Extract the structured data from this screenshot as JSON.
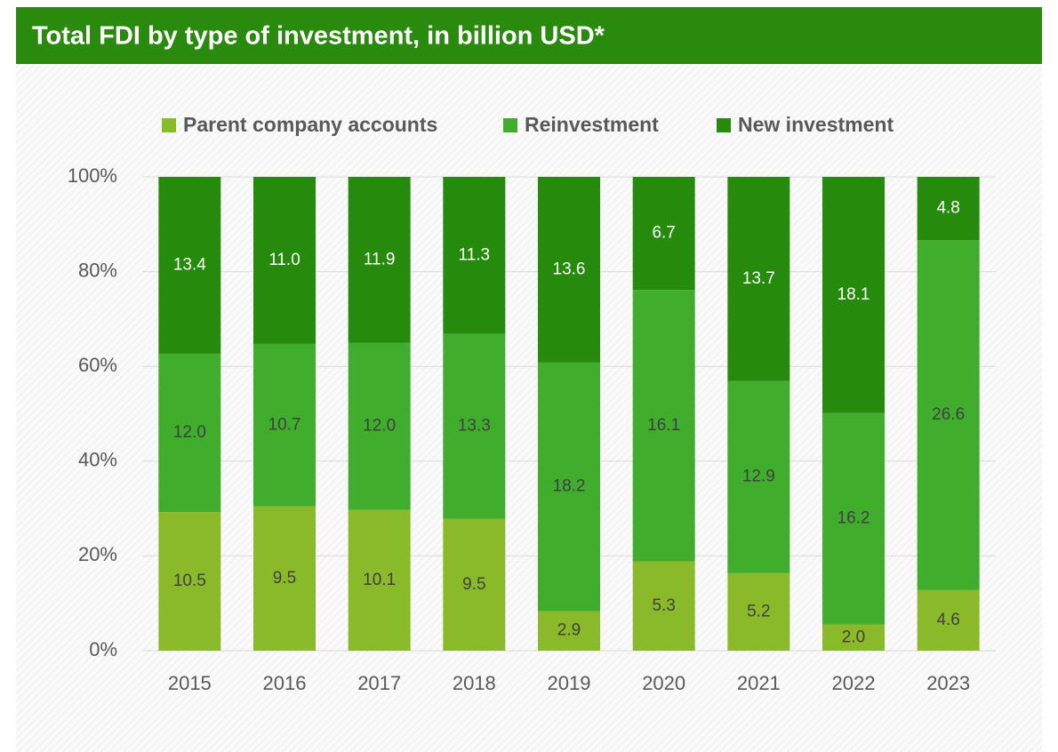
{
  "chart_data": {
    "type": "bar",
    "stacking": "percent",
    "title": "Total FDI by type of investment, in billion USD*",
    "categories": [
      "2015",
      "2016",
      "2017",
      "2018",
      "2019",
      "2020",
      "2021",
      "2022",
      "2023"
    ],
    "series": [
      {
        "name": "Parent company accounts",
        "color": "#8aba2a",
        "values": [
          10.5,
          9.5,
          10.1,
          9.5,
          2.9,
          5.3,
          5.2,
          2.0,
          4.6
        ],
        "value_labels": [
          "10.5",
          "9.5",
          "10.1",
          "9.5",
          "2.9",
          "5.3",
          "5.2",
          "2.0",
          "4.6"
        ]
      },
      {
        "name": "Reinvestment",
        "color": "#41ad2d",
        "values": [
          12.0,
          10.7,
          12.0,
          13.3,
          18.2,
          16.1,
          12.9,
          16.2,
          26.6
        ],
        "value_labels": [
          "12.0",
          "10.7",
          "12.0",
          "13.3",
          "18.2",
          "16.1",
          "12.9",
          "16.2",
          "26.6"
        ]
      },
      {
        "name": "New investment",
        "color": "#268a0d",
        "values": [
          13.4,
          11.0,
          11.9,
          11.3,
          13.6,
          6.7,
          13.7,
          18.1,
          4.8
        ],
        "value_labels": [
          "13.4",
          "11.0",
          "11.9",
          "11.3",
          "13.6",
          "6.7",
          "13.7",
          "18.1",
          "4.8"
        ]
      }
    ],
    "ylim": [
      0,
      100
    ],
    "yticks": [
      {
        "value": 0,
        "label": "0%"
      },
      {
        "value": 20,
        "label": "20%"
      },
      {
        "value": 40,
        "label": "40%"
      },
      {
        "value": 60,
        "label": "60%"
      },
      {
        "value": 80,
        "label": "80%"
      },
      {
        "value": 100,
        "label": "100%"
      }
    ],
    "grid": true,
    "legend": "top"
  }
}
